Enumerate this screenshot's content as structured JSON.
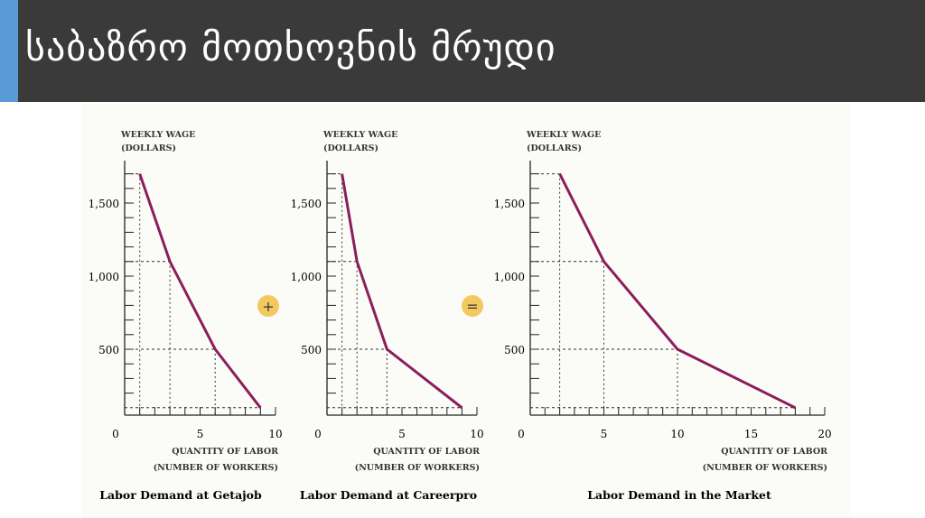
{
  "header": {
    "title": "საბაზრო მოთხოვნის მრუდი"
  },
  "operators": {
    "plus": "+",
    "equals": "="
  },
  "chart_data": [
    {
      "type": "line",
      "title": "Labor Demand at Getajob",
      "ylabel_line1": "WEEKLY WAGE",
      "ylabel_line2": "(DOLLARS)",
      "xlabel_line1": "QUANTITY OF LABOR",
      "xlabel_line2": "(NUMBER OF WORKERS)",
      "x": [
        1,
        3,
        6,
        9
      ],
      "y": [
        1700,
        1100,
        500,
        100
      ],
      "xlim": [
        0,
        10
      ],
      "ylim": [
        0,
        1800
      ],
      "xticks": [
        "0",
        "5",
        "10"
      ],
      "yticks": [
        "500",
        "1,000",
        "1,500"
      ],
      "color": "#8b1e5a"
    },
    {
      "type": "line",
      "title": "Labor Demand at Careerpro",
      "ylabel_line1": "WEEKLY WAGE",
      "ylabel_line2": "(DOLLARS)",
      "xlabel_line1": "QUANTITY OF LABOR",
      "xlabel_line2": "(NUMBER OF WORKERS)",
      "x": [
        1,
        2,
        4,
        9
      ],
      "y": [
        1700,
        1100,
        500,
        100
      ],
      "xlim": [
        0,
        10
      ],
      "ylim": [
        0,
        1800
      ],
      "xticks": [
        "0",
        "5",
        "10"
      ],
      "yticks": [
        "500",
        "1,000",
        "1,500"
      ],
      "color": "#8b1e5a"
    },
    {
      "type": "line",
      "title": "Labor Demand in the Market",
      "ylabel_line1": "WEEKLY WAGE",
      "ylabel_line2": "(DOLLARS)",
      "xlabel_line1": "QUANTITY OF LABOR",
      "xlabel_line2": "(NUMBER OF WORKERS)",
      "x": [
        2,
        5,
        10,
        18
      ],
      "y": [
        1700,
        1100,
        500,
        100
      ],
      "xlim": [
        0,
        20
      ],
      "ylim": [
        0,
        1800
      ],
      "xticks": [
        "0",
        "5",
        "10",
        "15",
        "20"
      ],
      "yticks": [
        "500",
        "1,000",
        "1,500"
      ],
      "color": "#8b1e5a"
    }
  ]
}
